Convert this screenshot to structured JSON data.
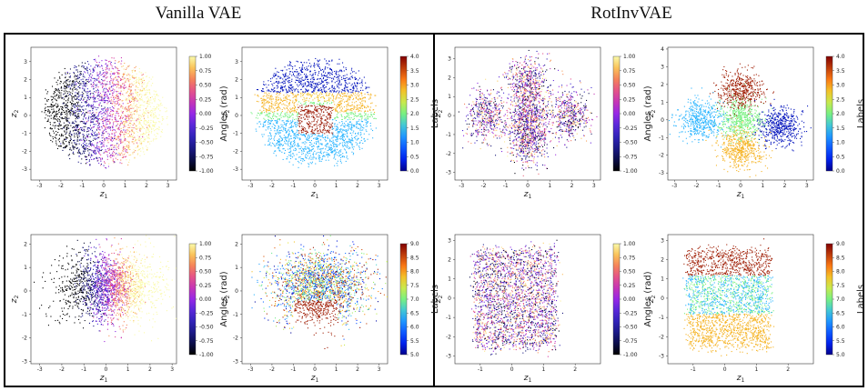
{
  "headings": {
    "left": "Vanilla VAE",
    "right": "RotInvVAE"
  },
  "chart_data": [
    {
      "id": "p1",
      "group": "Vanilla VAE",
      "type": "scatter",
      "xlabel": "z1",
      "ylabel": "z2",
      "xlim": [
        -3.4,
        3.4
      ],
      "ylim": [
        -3.6,
        3.8
      ],
      "xticks": [
        -3,
        -2,
        -1,
        0,
        1,
        2,
        3
      ],
      "yticks": [
        -3,
        -2,
        -1,
        0,
        1,
        2,
        3
      ],
      "colorbar": {
        "label": "Angles (rad)",
        "cmap": "plasma",
        "range": [
          -1.0,
          1.0
        ],
        "ticks": [
          "1.00",
          "0.75",
          "0.50",
          "0.25",
          "0.00",
          "-0.25",
          "-0.50",
          "-0.75",
          "-1.00"
        ]
      }
    },
    {
      "id": "p2",
      "group": "Vanilla VAE",
      "type": "scatter",
      "xlabel": "z1",
      "ylabel": "z2",
      "xlim": [
        -3.4,
        3.4
      ],
      "ylim": [
        -3.6,
        3.8
      ],
      "xticks": [
        -3,
        -2,
        -1,
        0,
        1,
        2,
        3
      ],
      "yticks": [
        -3,
        -2,
        -1,
        0,
        1,
        2,
        3
      ],
      "colorbar": {
        "label": "Labels",
        "cmap": "jet",
        "range": [
          0.0,
          4.0
        ],
        "ticks": [
          "4.0",
          "3.5",
          "3.0",
          "2.5",
          "2.0",
          "1.5",
          "1.0",
          "0.5",
          "0.0"
        ]
      }
    },
    {
      "id": "p3",
      "group": "Vanilla VAE",
      "type": "scatter",
      "xlabel": "z1",
      "ylabel": "z2",
      "xlim": [
        -3.4,
        3.2
      ],
      "ylim": [
        -3.1,
        2.4
      ],
      "xticks": [
        -3,
        -2,
        -1,
        0,
        1,
        2,
        3
      ],
      "yticks": [
        -3,
        -2,
        -1,
        0,
        1,
        2
      ],
      "colorbar": {
        "label": "Angles (rad)",
        "cmap": "plasma",
        "range": [
          -1.0,
          1.0
        ],
        "ticks": [
          "1.00",
          "0.75",
          "0.50",
          "0.25",
          "0.00",
          "-0.25",
          "-0.50",
          "-0.75",
          "-1.00"
        ]
      }
    },
    {
      "id": "p4",
      "group": "Vanilla VAE",
      "type": "scatter",
      "xlabel": "z1",
      "ylabel": "z2",
      "xlim": [
        -3.4,
        3.4
      ],
      "ylim": [
        -3.1,
        2.4
      ],
      "xticks": [
        -3,
        -2,
        -1,
        0,
        1,
        2,
        3
      ],
      "yticks": [
        -3,
        -2,
        -1,
        0,
        1,
        2
      ],
      "colorbar": {
        "label": "Labels",
        "cmap": "jet",
        "range": [
          5.0,
          9.0
        ],
        "ticks": [
          "9.0",
          "8.5",
          "8.0",
          "7.5",
          "7.0",
          "6.5",
          "6.0",
          "5.5",
          "5.0"
        ]
      }
    },
    {
      "id": "p5",
      "group": "RotInvVAE",
      "type": "scatter",
      "xlabel": "z1",
      "ylabel": "z2",
      "xlim": [
        -3.3,
        3.3
      ],
      "ylim": [
        -3.4,
        3.6
      ],
      "xticks": [
        -3,
        -2,
        -1,
        0,
        1,
        2,
        3
      ],
      "yticks": [
        -3,
        -2,
        -1,
        0,
        1,
        2,
        3
      ],
      "colorbar": {
        "label": "Angles (rad)",
        "cmap": "plasma",
        "range": [
          -1.0,
          1.0
        ],
        "ticks": [
          "1.00",
          "0.75",
          "0.50",
          "0.25",
          "0.00",
          "-0.25",
          "-0.50",
          "-0.75",
          "-1.00"
        ]
      }
    },
    {
      "id": "p6",
      "group": "RotInvVAE",
      "type": "scatter",
      "xlabel": "z1",
      "ylabel": "z2",
      "xlim": [
        -3.3,
        3.3
      ],
      "ylim": [
        -3.4,
        4.1
      ],
      "xticks": [
        -3,
        -2,
        -1,
        0,
        1,
        2,
        3
      ],
      "yticks": [
        -3,
        -2,
        -1,
        0,
        1,
        2,
        3,
        4
      ],
      "colorbar": {
        "label": "Labels",
        "cmap": "jet",
        "range": [
          0.0,
          4.0
        ],
        "ticks": [
          "4.0",
          "3.5",
          "3.0",
          "2.5",
          "2.0",
          "1.5",
          "1.0",
          "0.5",
          "0.0"
        ]
      }
    },
    {
      "id": "p7",
      "group": "RotInvVAE",
      "type": "scatter",
      "xlabel": "z1",
      "ylabel": "z2",
      "xlim": [
        -1.8,
        2.8
      ],
      "ylim": [
        -3.4,
        3.3
      ],
      "xticks": [
        -1,
        0,
        1,
        2
      ],
      "yticks": [
        -3,
        -2,
        -1,
        0,
        1,
        2,
        3
      ],
      "colorbar": {
        "label": "Angles (rad)",
        "cmap": "plasma",
        "range": [
          -1.0,
          1.0
        ],
        "ticks": [
          "1.00",
          "0.75",
          "0.50",
          "0.25",
          "0.00",
          "-0.25",
          "-0.50",
          "-0.75",
          "-1.00"
        ]
      }
    },
    {
      "id": "p8",
      "group": "RotInvVAE",
      "type": "scatter",
      "xlabel": "z1",
      "ylabel": "z2",
      "xlim": [
        -1.8,
        2.8
      ],
      "ylim": [
        -3.4,
        3.3
      ],
      "xticks": [
        -1,
        0,
        1,
        2
      ],
      "yticks": [
        -3,
        -2,
        -1,
        0,
        1,
        2,
        3
      ],
      "colorbar": {
        "label": "Labels",
        "cmap": "jet",
        "range": [
          5.0,
          9.0
        ],
        "ticks": [
          "9.0",
          "8.5",
          "8.0",
          "7.5",
          "7.0",
          "6.5",
          "6.0",
          "5.5",
          "5.0"
        ]
      }
    }
  ]
}
